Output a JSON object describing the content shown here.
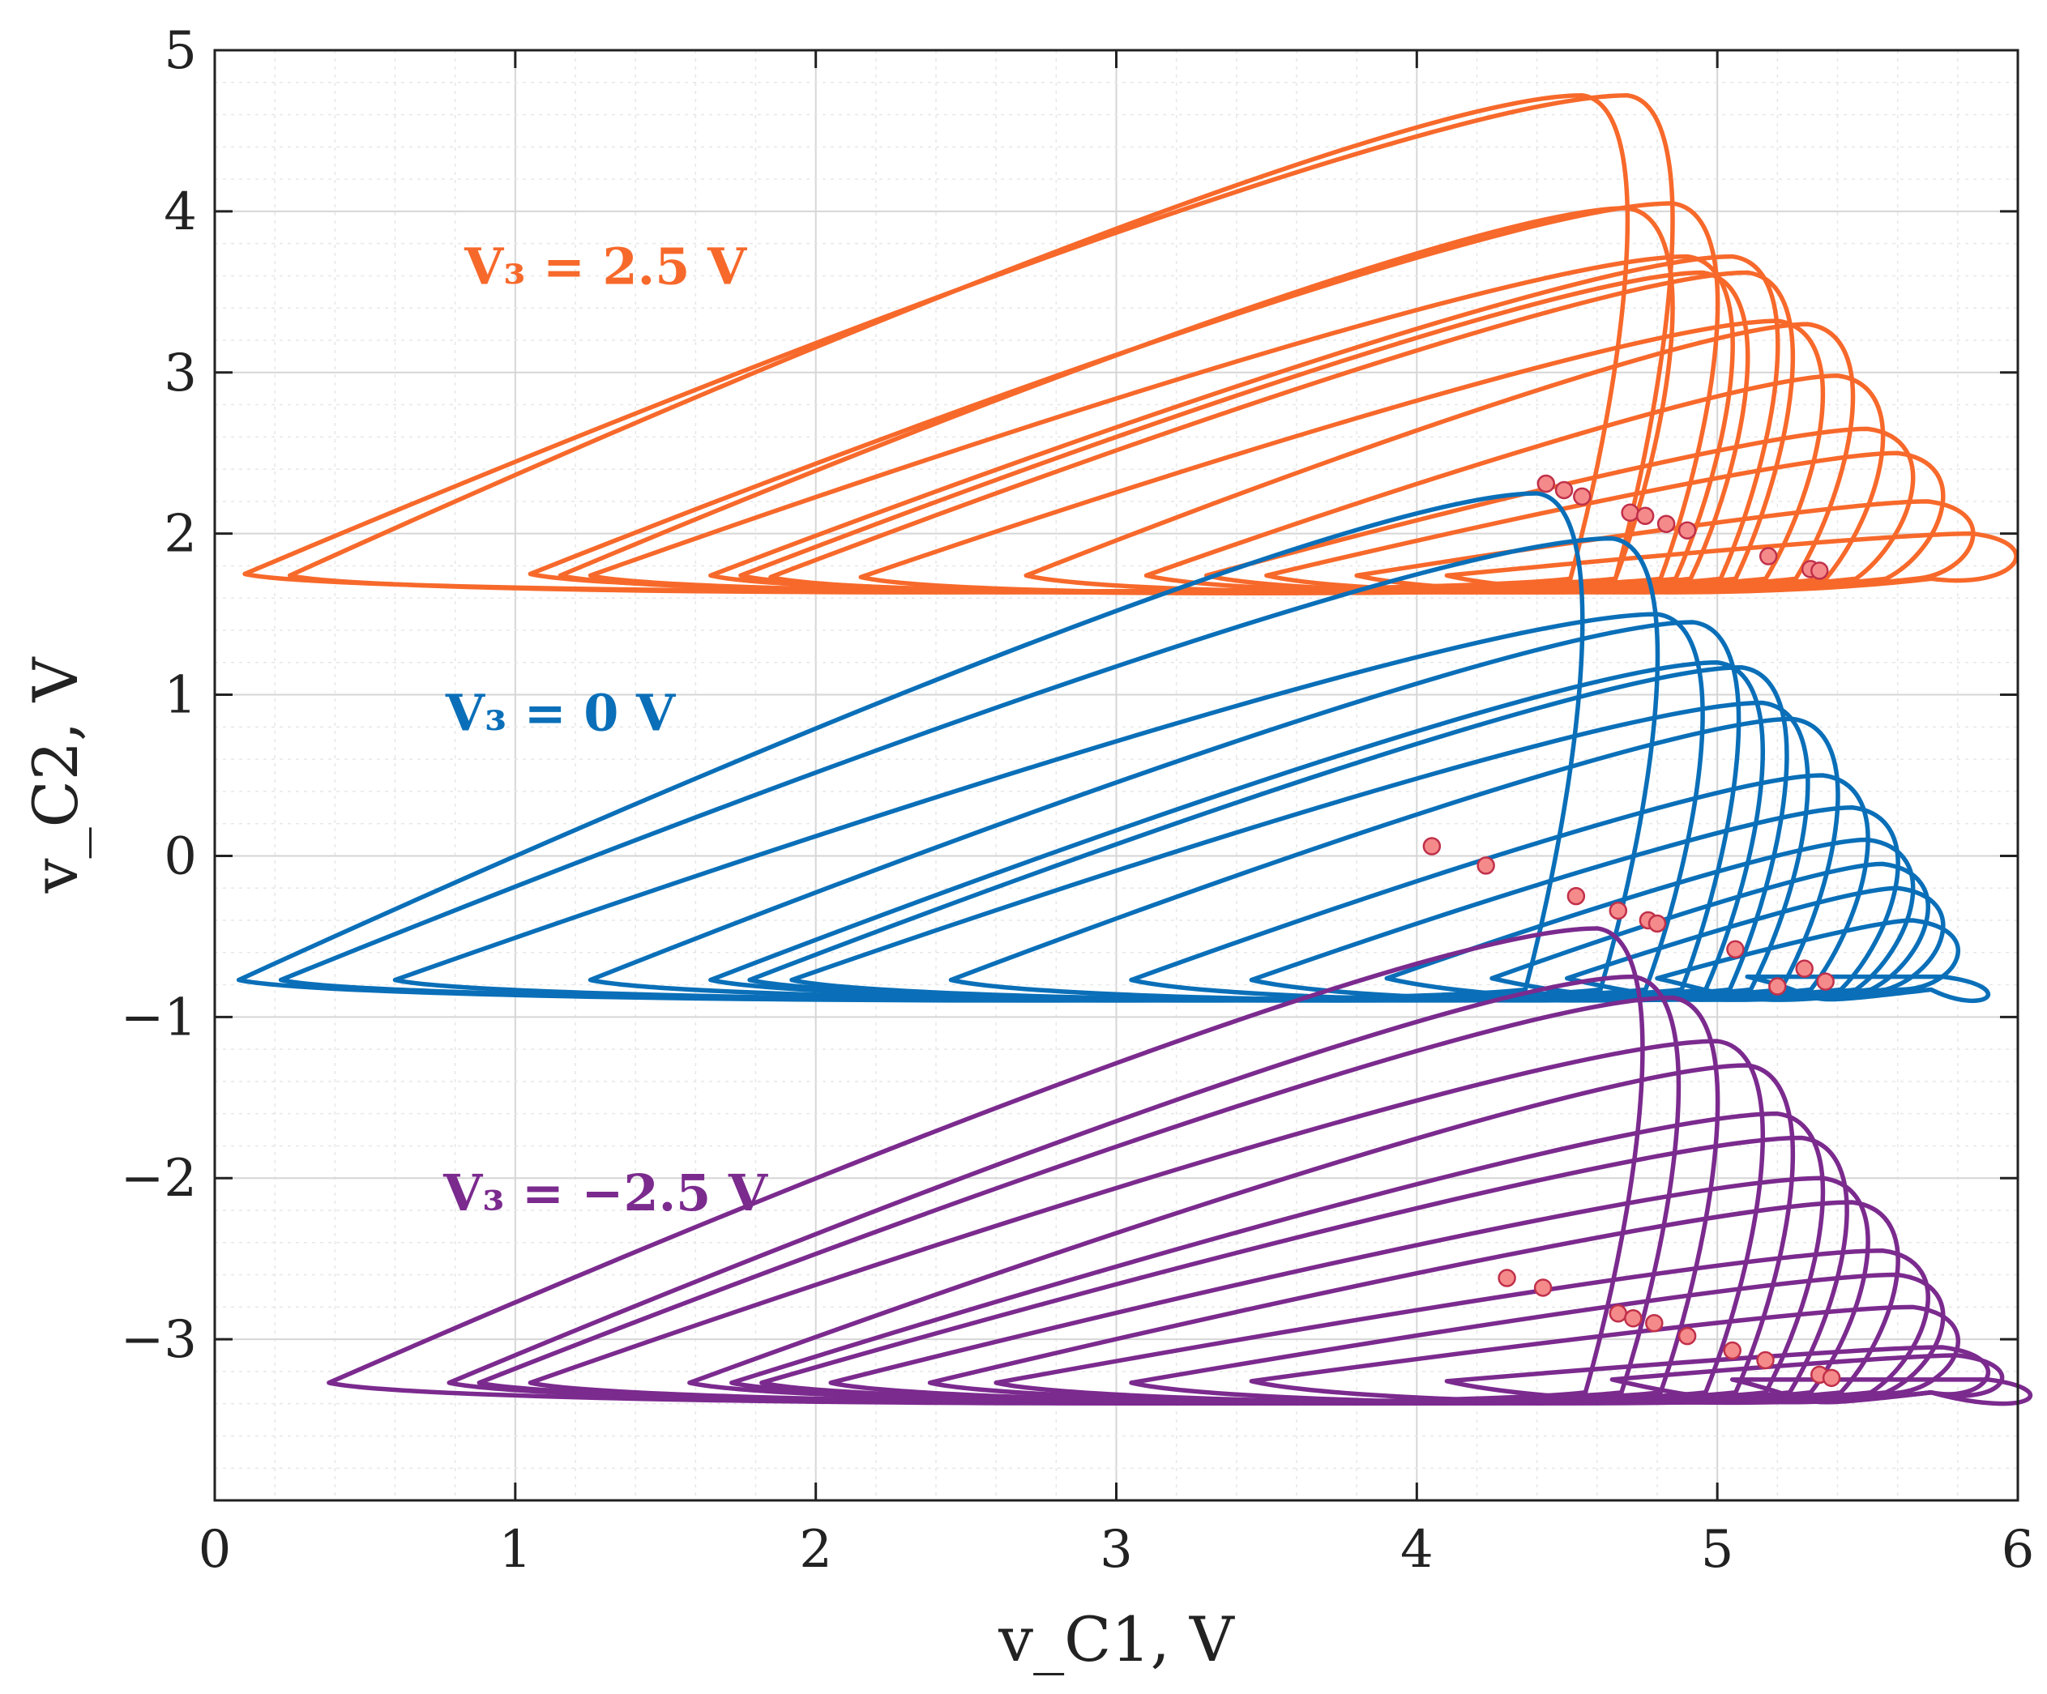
{
  "chart_data": {
    "type": "line",
    "title": "",
    "xlabel": "v_C1, V",
    "ylabel": "v_C2, V",
    "xlim": [
      0,
      6
    ],
    "ylim": [
      -4,
      5
    ],
    "x_ticks": [
      0,
      1,
      2,
      3,
      4,
      5,
      6
    ],
    "y_ticks": [
      -3,
      -2,
      -1,
      0,
      1,
      2,
      3,
      4,
      5
    ],
    "x_tick_labels": [
      "0",
      "1",
      "2",
      "3",
      "4",
      "5",
      "6"
    ],
    "y_tick_labels": [
      "−3",
      "−2",
      "−1",
      "0",
      "1",
      "2",
      "3",
      "4",
      "5"
    ],
    "grid": "on (major and minor)",
    "series": [
      {
        "name": "V₃ = 2.5 V",
        "color": "#F7692B",
        "baseline": 1.7,
        "loop_tips": [
          [
            0.1,
            1.75
          ],
          [
            0.25,
            1.74
          ],
          [
            1.05,
            1.75
          ],
          [
            1.15,
            1.74
          ],
          [
            1.25,
            1.74
          ],
          [
            1.65,
            1.74
          ],
          [
            1.75,
            1.74
          ],
          [
            1.85,
            1.73
          ],
          [
            2.15,
            1.73
          ],
          [
            2.7,
            1.74
          ],
          [
            3.1,
            1.74
          ],
          [
            3.3,
            1.74
          ],
          [
            3.5,
            1.74
          ],
          [
            3.8,
            1.74
          ],
          [
            4.1,
            1.74
          ]
        ],
        "loop_peaks": [
          [
            4.7,
            4.72
          ],
          [
            4.55,
            4.72
          ],
          [
            4.85,
            4.05
          ],
          [
            4.7,
            4.02
          ],
          [
            4.9,
            3.72
          ],
          [
            5.05,
            3.72
          ],
          [
            4.95,
            3.62
          ],
          [
            5.1,
            3.62
          ],
          [
            5.2,
            3.32
          ],
          [
            5.3,
            3.3
          ],
          [
            5.4,
            2.98
          ],
          [
            5.5,
            2.65
          ],
          [
            5.6,
            2.5
          ],
          [
            5.7,
            2.2
          ],
          [
            5.85,
            2.0
          ]
        ],
        "markers": [
          [
            4.43,
            2.31
          ],
          [
            4.49,
            2.27
          ],
          [
            4.55,
            2.23
          ],
          [
            4.71,
            2.13
          ],
          [
            4.76,
            2.11
          ],
          [
            4.83,
            2.06
          ],
          [
            4.9,
            2.02
          ],
          [
            5.17,
            1.86
          ],
          [
            5.31,
            1.78
          ],
          [
            5.34,
            1.77
          ]
        ]
      },
      {
        "name": "V₃ = 0 V",
        "color": "#0A6FB8",
        "baseline": -0.85,
        "loop_tips": [
          [
            0.08,
            -0.77
          ],
          [
            0.22,
            -0.77
          ],
          [
            0.6,
            -0.77
          ],
          [
            1.25,
            -0.77
          ],
          [
            1.65,
            -0.77
          ],
          [
            1.78,
            -0.77
          ],
          [
            1.92,
            -0.77
          ],
          [
            2.45,
            -0.77
          ],
          [
            3.05,
            -0.77
          ],
          [
            3.45,
            -0.77
          ],
          [
            3.9,
            -0.76
          ],
          [
            4.25,
            -0.76
          ],
          [
            4.5,
            -0.76
          ],
          [
            4.8,
            -0.76
          ],
          [
            5.1,
            -0.75
          ]
        ],
        "loop_peaks": [
          [
            4.4,
            2.25
          ],
          [
            4.65,
            1.97
          ],
          [
            4.8,
            1.5
          ],
          [
            4.92,
            1.45
          ],
          [
            5.0,
            1.2
          ],
          [
            5.08,
            1.17
          ],
          [
            5.15,
            0.95
          ],
          [
            5.25,
            0.85
          ],
          [
            5.35,
            0.5
          ],
          [
            5.45,
            0.3
          ],
          [
            5.5,
            0.1
          ],
          [
            5.55,
            -0.05
          ],
          [
            5.6,
            -0.2
          ],
          [
            5.65,
            -0.4
          ],
          [
            5.75,
            -0.75
          ]
        ],
        "markers": [
          [
            4.05,
            0.06
          ],
          [
            4.23,
            -0.06
          ],
          [
            4.53,
            -0.25
          ],
          [
            4.67,
            -0.34
          ],
          [
            4.77,
            -0.4
          ],
          [
            4.8,
            -0.42
          ],
          [
            5.06,
            -0.58
          ],
          [
            5.2,
            -0.81
          ],
          [
            5.29,
            -0.7
          ],
          [
            5.36,
            -0.78
          ]
        ]
      },
      {
        "name": "V₃ = −2.5 V",
        "color": "#7B2A8E",
        "baseline": -3.35,
        "loop_tips": [
          [
            0.38,
            -3.27
          ],
          [
            0.78,
            -3.27
          ],
          [
            0.88,
            -3.27
          ],
          [
            1.05,
            -3.27
          ],
          [
            1.58,
            -3.27
          ],
          [
            1.72,
            -3.27
          ],
          [
            1.82,
            -3.27
          ],
          [
            2.05,
            -3.27
          ],
          [
            2.38,
            -3.27
          ],
          [
            2.6,
            -3.27
          ],
          [
            3.05,
            -3.27
          ],
          [
            3.45,
            -3.26
          ],
          [
            4.1,
            -3.26
          ],
          [
            4.65,
            -3.25
          ],
          [
            5.05,
            -3.25
          ]
        ],
        "loop_peaks": [
          [
            4.6,
            -0.45
          ],
          [
            4.72,
            -0.75
          ],
          [
            4.85,
            -0.88
          ],
          [
            5.0,
            -1.15
          ],
          [
            5.1,
            -1.3
          ],
          [
            5.2,
            -1.6
          ],
          [
            5.28,
            -1.75
          ],
          [
            5.35,
            -2.0
          ],
          [
            5.45,
            -2.15
          ],
          [
            5.55,
            -2.45
          ],
          [
            5.6,
            -2.6
          ],
          [
            5.65,
            -2.8
          ],
          [
            5.75,
            -3.05
          ],
          [
            5.8,
            -3.1
          ],
          [
            5.9,
            -3.25
          ]
        ],
        "markers": [
          [
            4.3,
            -2.62
          ],
          [
            4.42,
            -2.68
          ],
          [
            4.67,
            -2.84
          ],
          [
            4.72,
            -2.87
          ],
          [
            4.79,
            -2.9
          ],
          [
            4.9,
            -2.98
          ],
          [
            5.05,
            -3.07
          ],
          [
            5.16,
            -3.13
          ],
          [
            5.34,
            -3.22
          ],
          [
            5.38,
            -3.24
          ]
        ]
      }
    ],
    "annotations": [
      {
        "text": "V₃ = 2.5 V",
        "x": 1.3,
        "y": 3.65,
        "color": "#F7692B"
      },
      {
        "text": "V₃ = 0 V",
        "x": 1.15,
        "y": 0.88,
        "color": "#0A6FB8"
      },
      {
        "text": "V₃ = −2.5 V",
        "x": 1.3,
        "y": -2.1,
        "color": "#7B2A8E"
      }
    ],
    "marker_style": {
      "fill": "#F58A8A",
      "stroke": "#C0304A"
    }
  }
}
